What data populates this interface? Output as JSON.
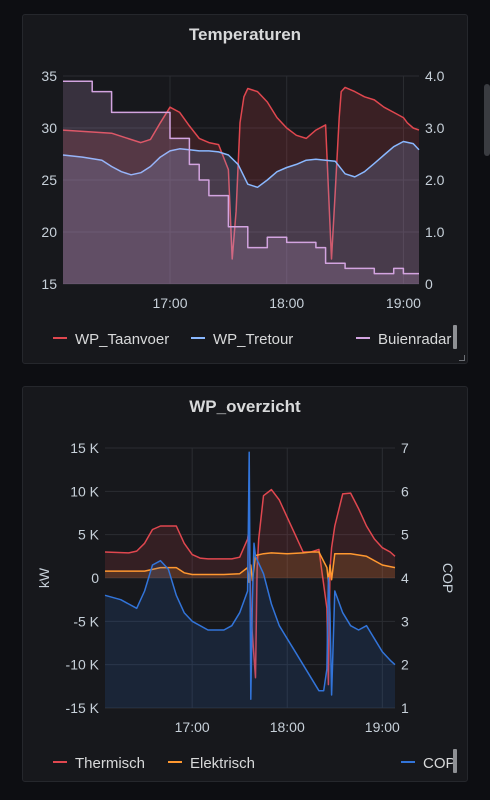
{
  "panels": [
    {
      "title": "Temperaturen",
      "chart_data": {
        "type": "line",
        "title": "Temperaturen",
        "x_ticks": [
          "17:00",
          "18:00",
          "19:00"
        ],
        "y_left": {
          "ticks": [
            "15",
            "20",
            "25",
            "30",
            "35"
          ],
          "range": [
            15,
            35
          ]
        },
        "y_right": {
          "ticks": [
            "0",
            "1.0",
            "2.0",
            "3.0",
            "4.0"
          ],
          "range": [
            0,
            4
          ]
        },
        "grid": true,
        "legend_placement": "bottom",
        "series": [
          {
            "name": "WP_Taanvoer",
            "axis": "left",
            "color": "#e0474f",
            "x": [
              "16:05",
              "16:30",
              "16:45",
              "16:50",
              "16:55",
              "17:00",
              "17:05",
              "17:10",
              "17:15",
              "17:20",
              "17:25",
              "17:30",
              "17:32",
              "17:34",
              "17:36",
              "17:38",
              "17:40",
              "17:45",
              "17:50",
              "17:55",
              "18:00",
              "18:05",
              "18:10",
              "18:15",
              "18:20",
              "18:23",
              "18:25",
              "18:27",
              "18:28",
              "18:30",
              "18:35",
              "18:40",
              "18:45",
              "18:50",
              "18:55",
              "19:00",
              "19:02",
              "19:05",
              "19:08"
            ],
            "values": [
              29.8,
              29.5,
              28.6,
              28.9,
              30.5,
              32.0,
              31.5,
              30.2,
              29.0,
              28.6,
              28.4,
              26.0,
              17.4,
              22.0,
              30.5,
              33.0,
              33.8,
              33.5,
              32.5,
              31.0,
              30.0,
              29.3,
              29.0,
              29.8,
              30.3,
              17.4,
              24.0,
              31.0,
              33.5,
              33.9,
              33.5,
              33.0,
              32.7,
              32.0,
              31.5,
              31.0,
              30.5,
              30.0,
              29.8
            ]
          },
          {
            "name": "WP_Tretour",
            "axis": "left",
            "color": "#8ab8ff",
            "x": [
              "16:05",
              "16:15",
              "16:25",
              "16:30",
              "16:35",
              "16:40",
              "16:45",
              "16:50",
              "16:55",
              "17:00",
              "17:05",
              "17:10",
              "17:15",
              "17:20",
              "17:25",
              "17:30",
              "17:35",
              "17:40",
              "17:45",
              "17:50",
              "17:55",
              "18:00",
              "18:05",
              "18:10",
              "18:15",
              "18:20",
              "18:25",
              "18:30",
              "18:35",
              "18:40",
              "18:45",
              "18:50",
              "18:55",
              "19:00",
              "19:05",
              "19:08"
            ],
            "values": [
              27.4,
              27.2,
              26.9,
              26.3,
              25.8,
              25.5,
              25.7,
              26.3,
              27.2,
              27.8,
              28.0,
              27.9,
              27.8,
              27.8,
              27.7,
              27.4,
              26.5,
              24.6,
              24.3,
              25.0,
              25.8,
              26.2,
              26.5,
              26.9,
              27.0,
              26.9,
              26.8,
              25.6,
              25.3,
              25.8,
              26.6,
              27.4,
              28.2,
              28.7,
              28.5,
              27.9
            ]
          },
          {
            "name": "Buienradar",
            "axis": "right",
            "color": "#d3a4e0",
            "x": [
              "16:05",
              "16:15",
              "16:20",
              "16:30",
              "17:00",
              "17:10",
              "17:15",
              "17:20",
              "17:30",
              "17:40",
              "17:50",
              "18:00",
              "18:15",
              "18:20",
              "18:30",
              "18:45",
              "18:55",
              "19:00",
              "19:08"
            ],
            "values": [
              3.9,
              3.9,
              3.7,
              3.3,
              2.8,
              2.3,
              2.0,
              1.7,
              1.1,
              0.7,
              0.9,
              0.8,
              0.7,
              0.4,
              0.3,
              0.2,
              0.3,
              0.2,
              0.2
            ]
          }
        ]
      },
      "legend": [
        "WP_Taanvoer",
        "WP_Tretour",
        "Buienradar"
      ]
    },
    {
      "title": "WP_overzicht",
      "chart_data": {
        "type": "area",
        "title": "WP_overzicht",
        "x_ticks": [
          "17:00",
          "18:00",
          "19:00"
        ],
        "y_left": {
          "ticks": [
            "-15 K",
            "-10 K",
            "-5 K",
            "0",
            "5 K",
            "10 K",
            "15 K"
          ],
          "range": [
            -15000,
            15000
          ],
          "label": "kW"
        },
        "y_right": {
          "ticks": [
            "1",
            "2",
            "3",
            "4",
            "5",
            "6",
            "7"
          ],
          "range": [
            1,
            7
          ],
          "label": "COP"
        },
        "grid": true,
        "legend_placement": "bottom",
        "series": [
          {
            "name": "Thermisch",
            "axis": "left",
            "color": "#e0474f",
            "x": [
              "16:05",
              "16:20",
              "16:25",
              "16:30",
              "16:35",
              "16:40",
              "16:50",
              "16:55",
              "17:00",
              "17:05",
              "17:10",
              "17:15",
              "17:20",
              "17:25",
              "17:30",
              "17:35",
              "17:36",
              "17:37",
              "17:40",
              "17:41",
              "17:42",
              "17:45",
              "17:50",
              "17:55",
              "18:00",
              "18:05",
              "18:10",
              "18:15",
              "18:20",
              "18:25",
              "18:26",
              "18:27",
              "18:28",
              "18:30",
              "18:35",
              "18:40",
              "18:45",
              "18:50",
              "18:55",
              "19:00",
              "19:05",
              "19:08"
            ],
            "values": [
              3000,
              2900,
              3100,
              4000,
              5600,
              6000,
              6000,
              4000,
              2700,
              2300,
              2200,
              2200,
              2200,
              2200,
              2400,
              4500,
              5800,
              -4000,
              -11500,
              1000,
              4500,
              9500,
              10200,
              9000,
              7000,
              5000,
              3000,
              3000,
              3300,
              -3500,
              -12300,
              1000,
              3500,
              6000,
              9700,
              9800,
              8000,
              6000,
              4500,
              3500,
              3000,
              2500
            ]
          },
          {
            "name": "Elektrisch",
            "axis": "left",
            "color": "#ff9830",
            "x": [
              "16:05",
              "16:30",
              "16:40",
              "16:50",
              "16:55",
              "17:00",
              "17:10",
              "17:20",
              "17:30",
              "17:35",
              "17:36",
              "17:37",
              "17:38",
              "17:40",
              "17:45",
              "17:50",
              "18:00",
              "18:10",
              "18:15",
              "18:20",
              "18:25",
              "18:26",
              "18:27",
              "18:28",
              "18:30",
              "18:40",
              "18:50",
              "19:00",
              "19:08"
            ],
            "values": [
              800,
              800,
              1200,
              1200,
              600,
              400,
              400,
              400,
              500,
              1200,
              -500,
              1500,
              -300,
              2600,
              2800,
              2900,
              2800,
              2900,
              3000,
              3000,
              1200,
              -400,
              1500,
              -200,
              2800,
              2800,
              2500,
              1500,
              1200
            ]
          },
          {
            "name": "COP",
            "axis": "right",
            "color": "#3274d9",
            "x": [
              "16:05",
              "16:15",
              "16:25",
              "16:30",
              "16:35",
              "16:40",
              "16:45",
              "16:50",
              "16:55",
              "17:00",
              "17:10",
              "17:15",
              "17:20",
              "17:25",
              "17:30",
              "17:35",
              "17:36",
              "17:37",
              "17:38",
              "17:39",
              "17:40",
              "17:45",
              "17:50",
              "17:55",
              "18:00",
              "18:05",
              "18:10",
              "18:15",
              "18:20",
              "18:23",
              "18:25",
              "18:26",
              "18:27",
              "18:28",
              "18:30",
              "18:35",
              "18:40",
              "18:45",
              "18:50",
              "18:55",
              "19:00",
              "19:05",
              "19:08"
            ],
            "values": [
              3.6,
              3.5,
              3.3,
              3.7,
              4.3,
              4.4,
              4.2,
              3.6,
              3.2,
              3.0,
              2.8,
              2.8,
              2.8,
              2.9,
              3.2,
              3.7,
              6.9,
              1.2,
              3.5,
              4.8,
              4.5,
              4.1,
              3.4,
              2.9,
              2.6,
              2.3,
              2.0,
              1.7,
              1.4,
              1.4,
              1.9,
              4.0,
              3.2,
              1.3,
              3.7,
              3.2,
              2.9,
              2.8,
              2.9,
              2.6,
              2.3,
              2.1,
              2.0
            ]
          }
        ]
      },
      "legend": [
        "Thermisch",
        "Elektrisch",
        "COP"
      ]
    }
  ],
  "colors": {
    "background": "#0d0e12",
    "panel": "#17181c",
    "grid": "#2b2d32",
    "red": "#e0474f",
    "blue": "#8ab8ff",
    "purple": "#d3a4e0",
    "orange": "#ff9830",
    "cop_blue": "#3274d9"
  }
}
